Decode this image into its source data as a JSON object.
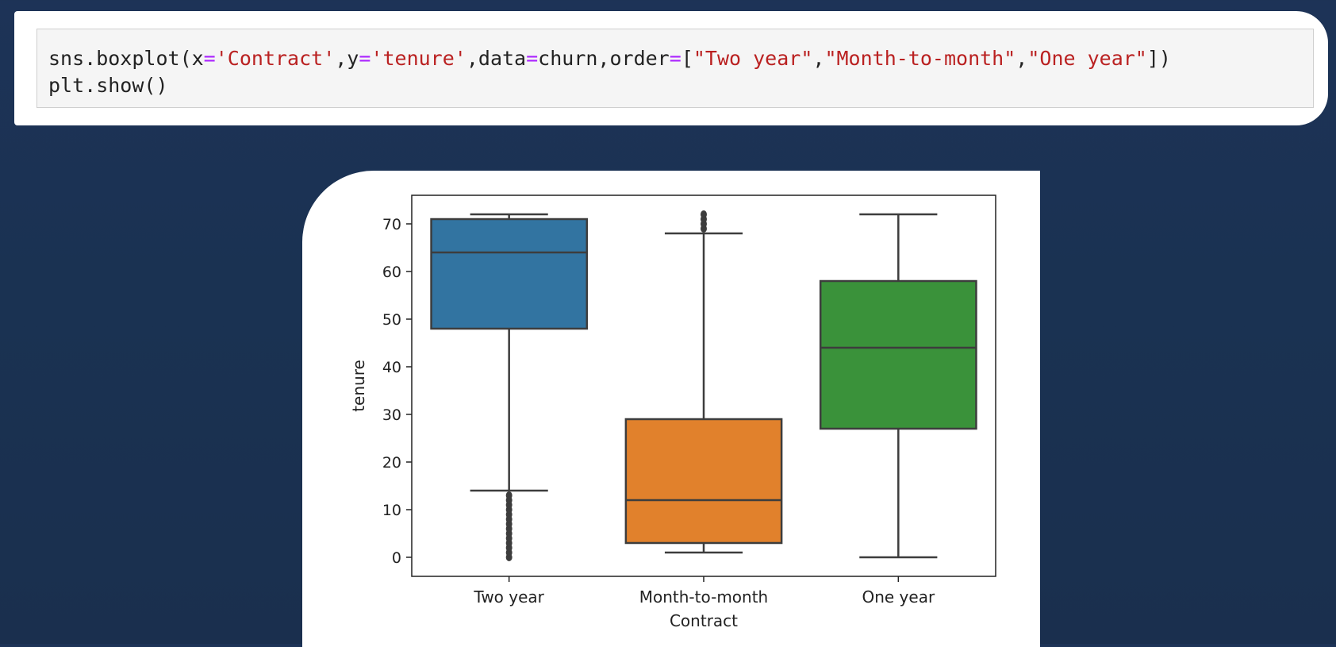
{
  "code_cell": {
    "line1": {
      "fn": "sns.boxplot(x",
      "eq1": "=",
      "s1": "'Contract'",
      "t1": ",y",
      "eq2": "=",
      "s2": "'tenure'",
      "t2": ",data",
      "eq3": "=",
      "t3": "churn,order",
      "eq4": "=",
      "t4": "[",
      "s3": "\"Two year\"",
      "t5": ",",
      "s4": "\"Month-to-month\"",
      "t6": ",",
      "s5": "\"One year\"",
      "t7": "])"
    },
    "line2": "plt.show()"
  },
  "chart_data": {
    "type": "box",
    "title": "",
    "xlabel": "Contract",
    "ylabel": "tenure",
    "ylim": [
      -4,
      76
    ],
    "yticks": [
      0,
      10,
      20,
      30,
      40,
      50,
      60,
      70
    ],
    "grid": false,
    "categories": [
      "Two year",
      "Month-to-month",
      "One year"
    ],
    "boxes": [
      {
        "category": "Two year",
        "color": "#3274a1",
        "whisker_low": 14,
        "q1": 48,
        "median": 64,
        "q3": 71,
        "whisker_high": 72,
        "outliers": [
          0,
          1,
          2,
          3,
          4,
          5,
          6,
          7,
          8,
          9,
          10,
          11,
          12,
          13
        ]
      },
      {
        "category": "Month-to-month",
        "color": "#e1812c",
        "whisker_low": 1,
        "q1": 3,
        "median": 12,
        "q3": 29,
        "whisker_high": 68,
        "outliers": [
          69,
          70,
          71,
          72
        ]
      },
      {
        "category": "One year",
        "color": "#3a923a",
        "whisker_low": 0,
        "q1": 27,
        "median": 44,
        "q3": 58,
        "whisker_high": 72,
        "outliers": []
      }
    ]
  }
}
